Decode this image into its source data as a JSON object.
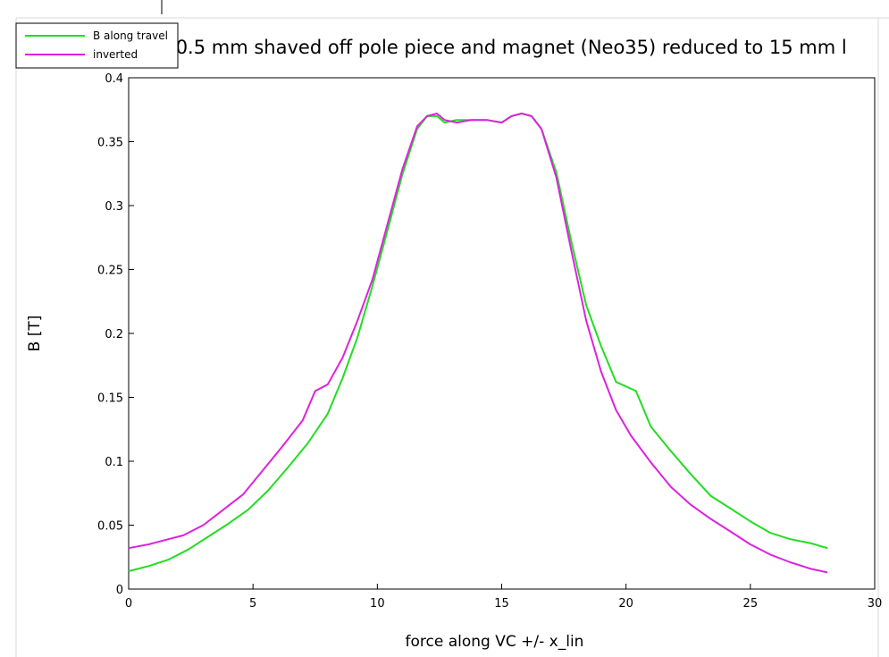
{
  "chart_data": {
    "type": "line",
    "title": "... 0.5 mm shaved off pole piece and magnet (Neo35) reduced to 15 mm l",
    "xlabel": "force along VC +/- x_lin",
    "ylabel": "B [T]",
    "xlim": [
      0,
      30
    ],
    "ylim": [
      0,
      0.4
    ],
    "xticks": [
      0,
      5,
      10,
      15,
      20,
      25,
      30
    ],
    "xtick_labels": [
      "0",
      "5",
      "10",
      "15",
      "20",
      "25",
      "30"
    ],
    "yticks": [
      0,
      0.05,
      0.1,
      0.15,
      0.2,
      0.25,
      0.3,
      0.35,
      0.4
    ],
    "ytick_labels": [
      "0",
      "0.05",
      "0.1",
      "0.15",
      "0.2",
      "0.25",
      "0.3",
      "0.35",
      "0.4"
    ],
    "grid": false,
    "legend_position": "top-left",
    "series": [
      {
        "name": "B along travel",
        "color": "#22dd22",
        "x": [
          0,
          0.8,
          1.6,
          2.4,
          3.2,
          4.0,
          4.8,
          5.6,
          6.4,
          7.2,
          8.0,
          8.6,
          9.2,
          9.8,
          10.4,
          11.0,
          11.6,
          12.0,
          12.4,
          12.7,
          13.2,
          13.8,
          14.4,
          15.0,
          15.4,
          15.8,
          16.2,
          16.6,
          17.2,
          17.8,
          18.4,
          19.0,
          19.6,
          20.4,
          21.0,
          21.8,
          22.6,
          23.4,
          24.2,
          25.0,
          25.8,
          26.6,
          27.4,
          28.1
        ],
        "y": [
          0.014,
          0.018,
          0.023,
          0.031,
          0.041,
          0.051,
          0.062,
          0.077,
          0.095,
          0.114,
          0.137,
          0.165,
          0.197,
          0.237,
          0.28,
          0.324,
          0.36,
          0.37,
          0.37,
          0.365,
          0.367,
          0.367,
          0.367,
          0.365,
          0.37,
          0.372,
          0.37,
          0.36,
          0.326,
          0.272,
          0.222,
          0.19,
          0.162,
          0.155,
          0.127,
          0.108,
          0.09,
          0.073,
          0.063,
          0.053,
          0.044,
          0.039,
          0.036,
          0.032
        ]
      },
      {
        "name": "inverted",
        "color": "#dd22dd",
        "x": [
          0,
          0.8,
          1.6,
          2.2,
          3.0,
          3.8,
          4.6,
          5.4,
          6.2,
          7.0,
          7.5,
          8.0,
          8.6,
          9.2,
          9.8,
          10.4,
          11.0,
          11.6,
          12.0,
          12.4,
          12.7,
          13.2,
          13.8,
          14.4,
          15.0,
          15.4,
          15.8,
          16.2,
          16.6,
          17.2,
          17.8,
          18.4,
          19.0,
          19.6,
          20.2,
          21.0,
          21.8,
          22.6,
          23.4,
          24.2,
          25.0,
          25.8,
          26.6,
          27.4,
          28.1
        ],
        "y": [
          0.032,
          0.035,
          0.039,
          0.042,
          0.05,
          0.062,
          0.074,
          0.093,
          0.112,
          0.132,
          0.155,
          0.16,
          0.181,
          0.21,
          0.242,
          0.285,
          0.328,
          0.362,
          0.37,
          0.372,
          0.367,
          0.365,
          0.367,
          0.367,
          0.365,
          0.37,
          0.372,
          0.37,
          0.36,
          0.322,
          0.265,
          0.21,
          0.17,
          0.14,
          0.12,
          0.099,
          0.08,
          0.066,
          0.055,
          0.045,
          0.035,
          0.027,
          0.021,
          0.016,
          0.013
        ]
      }
    ]
  },
  "colors": {
    "background": "#ffffff",
    "axes": "#000000",
    "frame": "#cccccc"
  }
}
